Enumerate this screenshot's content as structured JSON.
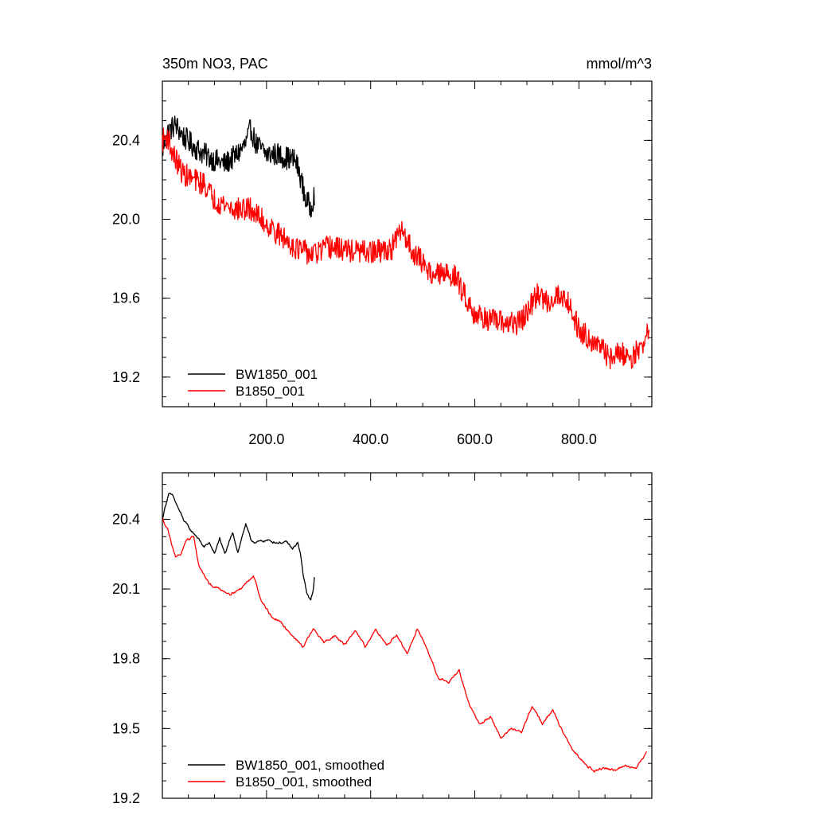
{
  "chart_data": [
    {
      "type": "line",
      "title_left": "350m NO3, PAC",
      "title_right": "mmol/m^3",
      "xlim": [
        0,
        940
      ],
      "ylim": [
        19.05,
        20.7
      ],
      "x_ticks": [
        200,
        400,
        600,
        800
      ],
      "x_tick_labels": [
        "200.0",
        "400.0",
        "600.0",
        "800.0"
      ],
      "y_ticks": [
        19.2,
        19.6,
        20.0,
        20.4
      ],
      "y_tick_labels": [
        "19.2",
        "19.6",
        "20.0",
        "20.4"
      ],
      "legend_position": "bottom-left",
      "series": [
        {
          "name": "BW1850_001",
          "color": "#000000",
          "noise": 0.06,
          "anchors": [
            [
              0,
              20.35
            ],
            [
              10,
              20.44
            ],
            [
              25,
              20.48
            ],
            [
              40,
              20.42
            ],
            [
              60,
              20.37
            ],
            [
              80,
              20.33
            ],
            [
              100,
              20.3
            ],
            [
              120,
              20.28
            ],
            [
              140,
              20.32
            ],
            [
              160,
              20.38
            ],
            [
              170,
              20.46
            ],
            [
              180,
              20.38
            ],
            [
              200,
              20.33
            ],
            [
              220,
              20.33
            ],
            [
              240,
              20.31
            ],
            [
              255,
              20.3
            ],
            [
              265,
              20.22
            ],
            [
              275,
              20.1
            ],
            [
              285,
              20.06
            ],
            [
              292,
              20.13
            ]
          ]
        },
        {
          "name": "B1850_001",
          "color": "#ff0000",
          "noise": 0.06,
          "anchors": [
            [
              0,
              20.4
            ],
            [
              10,
              20.42
            ],
            [
              20,
              20.33
            ],
            [
              40,
              20.23
            ],
            [
              60,
              20.2
            ],
            [
              80,
              20.18
            ],
            [
              100,
              20.1
            ],
            [
              140,
              20.05
            ],
            [
              170,
              20.05
            ],
            [
              190,
              20.0
            ],
            [
              220,
              19.93
            ],
            [
              260,
              19.85
            ],
            [
              290,
              19.82
            ],
            [
              320,
              19.86
            ],
            [
              360,
              19.84
            ],
            [
              400,
              19.83
            ],
            [
              440,
              19.85
            ],
            [
              460,
              19.95
            ],
            [
              480,
              19.84
            ],
            [
              520,
              19.72
            ],
            [
              560,
              19.72
            ],
            [
              580,
              19.62
            ],
            [
              600,
              19.52
            ],
            [
              640,
              19.48
            ],
            [
              680,
              19.47
            ],
            [
              700,
              19.52
            ],
            [
              720,
              19.62
            ],
            [
              740,
              19.58
            ],
            [
              760,
              19.62
            ],
            [
              780,
              19.58
            ],
            [
              800,
              19.44
            ],
            [
              820,
              19.4
            ],
            [
              840,
              19.35
            ],
            [
              860,
              19.3
            ],
            [
              880,
              19.32
            ],
            [
              900,
              19.3
            ],
            [
              920,
              19.35
            ],
            [
              935,
              19.45
            ]
          ]
        }
      ]
    },
    {
      "type": "line",
      "xlim": [
        0,
        940
      ],
      "ylim": [
        19.2,
        20.6
      ],
      "x_ticks": [
        200,
        400,
        600,
        800
      ],
      "y_ticks": [
        19.2,
        19.5,
        19.8,
        20.1,
        20.4
      ],
      "y_tick_labels": [
        "19.2",
        "19.5",
        "19.8",
        "20.1",
        "20.4"
      ],
      "legend_position": "bottom-left",
      "series": [
        {
          "name": "BW1850_001, smoothed",
          "color": "#000000",
          "noise": 0.012,
          "anchors": [
            [
              0,
              20.4
            ],
            [
              5,
              20.45
            ],
            [
              12,
              20.51
            ],
            [
              20,
              20.5
            ],
            [
              30,
              20.45
            ],
            [
              40,
              20.4
            ],
            [
              55,
              20.35
            ],
            [
              65,
              20.33
            ],
            [
              80,
              20.28
            ],
            [
              90,
              20.3
            ],
            [
              100,
              20.25
            ],
            [
              110,
              20.32
            ],
            [
              120,
              20.25
            ],
            [
              135,
              20.34
            ],
            [
              145,
              20.26
            ],
            [
              160,
              20.38
            ],
            [
              170,
              20.31
            ],
            [
              180,
              20.3
            ],
            [
              200,
              20.31
            ],
            [
              220,
              20.3
            ],
            [
              240,
              20.3
            ],
            [
              250,
              20.27
            ],
            [
              260,
              20.3
            ],
            [
              265,
              20.25
            ],
            [
              272,
              20.14
            ],
            [
              278,
              20.08
            ],
            [
              285,
              20.05
            ],
            [
              290,
              20.1
            ],
            [
              292,
              20.15
            ]
          ]
        },
        {
          "name": "B1850_001, smoothed",
          "color": "#ff0000",
          "noise": 0.012,
          "anchors": [
            [
              0,
              20.4
            ],
            [
              10,
              20.36
            ],
            [
              25,
              20.24
            ],
            [
              35,
              20.25
            ],
            [
              45,
              20.3
            ],
            [
              60,
              20.33
            ],
            [
              70,
              20.2
            ],
            [
              90,
              20.12
            ],
            [
              110,
              20.1
            ],
            [
              130,
              20.08
            ],
            [
              150,
              20.1
            ],
            [
              175,
              20.16
            ],
            [
              190,
              20.05
            ],
            [
              210,
              19.98
            ],
            [
              230,
              19.95
            ],
            [
              250,
              19.9
            ],
            [
              270,
              19.85
            ],
            [
              290,
              19.93
            ],
            [
              310,
              19.87
            ],
            [
              330,
              19.9
            ],
            [
              350,
              19.86
            ],
            [
              370,
              19.92
            ],
            [
              390,
              19.85
            ],
            [
              410,
              19.93
            ],
            [
              430,
              19.86
            ],
            [
              450,
              19.9
            ],
            [
              470,
              19.82
            ],
            [
              490,
              19.93
            ],
            [
              510,
              19.83
            ],
            [
              530,
              19.72
            ],
            [
              550,
              19.7
            ],
            [
              570,
              19.75
            ],
            [
              590,
              19.6
            ],
            [
              610,
              19.52
            ],
            [
              630,
              19.55
            ],
            [
              650,
              19.46
            ],
            [
              670,
              19.5
            ],
            [
              690,
              19.48
            ],
            [
              710,
              19.6
            ],
            [
              730,
              19.52
            ],
            [
              750,
              19.58
            ],
            [
              770,
              19.48
            ],
            [
              790,
              19.4
            ],
            [
              810,
              19.35
            ],
            [
              830,
              19.32
            ],
            [
              850,
              19.33
            ],
            [
              870,
              19.32
            ],
            [
              890,
              19.34
            ],
            [
              910,
              19.33
            ],
            [
              930,
              19.4
            ]
          ]
        }
      ]
    }
  ]
}
